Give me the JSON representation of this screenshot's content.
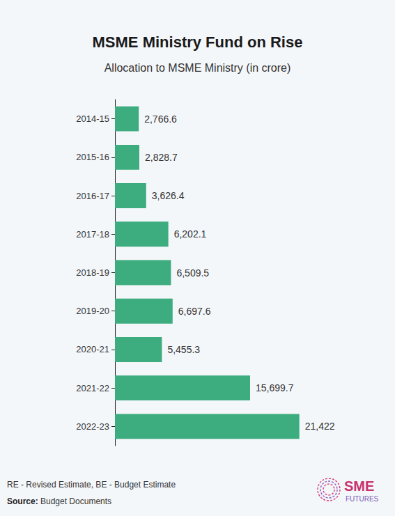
{
  "chart_data": {
    "type": "bar",
    "title": "MSME Ministry Fund on Rise",
    "subtitle": "Allocation to MSME Ministry (in crore)",
    "annotations": [
      "RE - Revised Estimate, BE - Budget Estimate",
      "Source: Budget Documents",
      "SME",
      "FUTURES"
    ],
    "categories": [
      "2014-15",
      "2015-16",
      "2016-17",
      "2017-18",
      "2018-19",
      "2019-20",
      "2020-21",
      "2021-22",
      "2022-23"
    ],
    "values": [
      2766.6,
      2828.7,
      3626.4,
      6202.1,
      6509.5,
      6697.6,
      5455.3,
      15699.7,
      21422
    ],
    "value_labels": [
      "2,766.6",
      "2,828.7",
      "3,626.4",
      "6,202.1",
      "6,509.5",
      "6,697.6",
      "5,455.3",
      "15,699.7",
      "21,422"
    ],
    "color": "#3dac7e",
    "orientation": "horizontal",
    "xlim": [
      0,
      28000
    ],
    "data_labels": true,
    "tick_labels": "y",
    "grid": false
  }
}
